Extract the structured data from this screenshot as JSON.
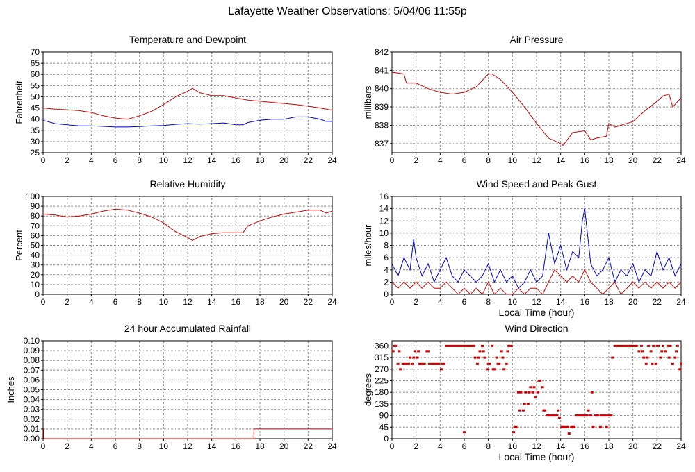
{
  "page": {
    "title": "Lafayette Weather Observations: 5/04/06 11:55p"
  },
  "colors": {
    "red": "#cc0000",
    "blue": "#0000cc",
    "grid": "#888888",
    "axis": "#000000"
  },
  "chart_data": [
    {
      "id": "temp",
      "type": "line",
      "title": "Temperature and Dewpoint",
      "xlabel": "",
      "ylabel": "Fahrenheit",
      "xlim": [
        0,
        24
      ],
      "ylim": [
        25,
        70
      ],
      "xticks": [
        0,
        2,
        4,
        6,
        8,
        10,
        12,
        14,
        16,
        18,
        20,
        22,
        24
      ],
      "yticks": [
        25,
        30,
        35,
        40,
        45,
        50,
        55,
        60,
        65,
        70
      ],
      "grid": true,
      "series": [
        {
          "color": "#cc0000",
          "x": [
            0,
            1,
            2,
            3,
            4,
            5,
            6,
            7,
            8,
            9,
            10,
            11,
            12,
            12.4,
            13,
            14,
            15,
            16,
            17,
            18,
            19,
            20,
            21,
            22,
            23,
            24
          ],
          "y": [
            45,
            44.5,
            44.2,
            43.8,
            43,
            41.5,
            40.5,
            40,
            41.5,
            43.5,
            46.5,
            50,
            52.5,
            53.8,
            51.8,
            50.5,
            50.5,
            49.5,
            48.5,
            48,
            47.5,
            47,
            46.5,
            45.8,
            45,
            44
          ]
        },
        {
          "color": "#0000cc",
          "x": [
            0,
            1,
            2,
            3,
            4,
            5,
            6,
            7,
            8,
            9,
            10,
            11,
            12,
            13,
            14,
            15,
            16,
            16.6,
            17,
            18,
            19,
            20,
            21,
            22,
            23,
            23.5,
            24
          ],
          "y": [
            39.5,
            38,
            37.5,
            37,
            37,
            36.8,
            36.5,
            36.5,
            36.7,
            37,
            37.2,
            37.7,
            38,
            37.8,
            38,
            38.3,
            37.5,
            37.5,
            38.5,
            39.5,
            40,
            40,
            41,
            41,
            40,
            39,
            39
          ]
        }
      ]
    },
    {
      "id": "pressure",
      "type": "line",
      "title": "Air Pressure",
      "xlabel": "",
      "ylabel": "millibars",
      "xlim": [
        0,
        24
      ],
      "ylim": [
        836.5,
        842
      ],
      "xticks": [
        0,
        2,
        4,
        6,
        8,
        10,
        12,
        14,
        16,
        18,
        20,
        22,
        24
      ],
      "yticks": [
        837,
        838,
        839,
        840,
        841,
        842
      ],
      "grid": true,
      "series": [
        {
          "color": "#cc0000",
          "x": [
            0,
            1,
            1.2,
            2,
            3,
            4,
            5,
            6,
            7,
            8,
            8.3,
            9,
            10,
            11,
            12,
            13,
            14,
            14.2,
            15,
            16,
            16.5,
            17,
            17.8,
            18,
            18.5,
            19,
            20,
            21,
            22,
            22.5,
            23,
            23.3,
            24
          ],
          "y": [
            840.9,
            840.8,
            840.3,
            840.3,
            840,
            839.8,
            839.7,
            839.8,
            840.1,
            840.8,
            840.8,
            840.5,
            839.8,
            839,
            838.1,
            837.3,
            837,
            836.9,
            837.6,
            837.7,
            837.2,
            837.3,
            837.4,
            838.1,
            837.9,
            838,
            838.2,
            838.8,
            839.3,
            839.6,
            839.7,
            839,
            839.5
          ]
        }
      ]
    },
    {
      "id": "humidity",
      "type": "line",
      "title": "Relative Humidity",
      "xlabel": "",
      "ylabel": "Percent",
      "xlim": [
        0,
        24
      ],
      "ylim": [
        0,
        100
      ],
      "xticks": [
        0,
        2,
        4,
        6,
        8,
        10,
        12,
        14,
        16,
        18,
        20,
        22,
        24
      ],
      "yticks": [
        0,
        10,
        20,
        30,
        40,
        50,
        60,
        70,
        80,
        90,
        100
      ],
      "grid": true,
      "series": [
        {
          "color": "#cc0000",
          "x": [
            0,
            1,
            2,
            3,
            4,
            5,
            6,
            7,
            8,
            9,
            10,
            11,
            12,
            12.4,
            13,
            14,
            15,
            16,
            16.6,
            17,
            18,
            19,
            20,
            21,
            22,
            23,
            23.5,
            24
          ],
          "y": [
            82,
            81,
            79,
            80,
            82,
            85,
            87,
            86,
            83,
            79,
            73,
            64,
            58,
            55,
            59,
            62,
            63,
            63,
            63,
            70,
            75,
            79,
            82,
            84,
            86,
            86,
            83,
            85
          ]
        }
      ]
    },
    {
      "id": "wind",
      "type": "line",
      "title": "Wind Speed and Peak Gust",
      "xlabel": "Local Time (hour)",
      "ylabel": "miles/hour",
      "xlim": [
        0,
        24
      ],
      "ylim": [
        0,
        16
      ],
      "xticks": [
        0,
        2,
        4,
        6,
        8,
        10,
        12,
        14,
        16,
        18,
        20,
        22,
        24
      ],
      "yticks": [
        0,
        2,
        4,
        6,
        8,
        10,
        12,
        14,
        16
      ],
      "grid": true,
      "series": [
        {
          "color": "#0000cc",
          "x": [
            0,
            0.5,
            1,
            1.5,
            1.8,
            2,
            2.5,
            3,
            3.5,
            4,
            4.5,
            5,
            5.5,
            6,
            6.5,
            7,
            7.5,
            8,
            8.5,
            9,
            9.5,
            10,
            10.5,
            11,
            11.5,
            12,
            12.5,
            13,
            13.5,
            14,
            14.5,
            15,
            15.5,
            15.8,
            16,
            16.5,
            17,
            17.5,
            18,
            18.5,
            19,
            19.5,
            20,
            20.5,
            21,
            21.5,
            22,
            22.5,
            23,
            23.5,
            24
          ],
          "y": [
            5,
            3,
            6,
            4,
            9,
            6,
            3,
            5,
            2,
            4,
            6,
            3,
            2,
            4,
            3,
            2,
            3,
            5,
            2,
            4,
            2,
            3,
            1,
            2,
            4,
            2,
            3,
            10,
            5,
            8,
            4,
            7,
            6,
            12,
            14,
            5,
            3,
            4,
            6,
            2,
            4,
            3,
            5,
            2,
            4,
            3,
            7,
            4,
            6,
            3,
            5
          ]
        },
        {
          "color": "#cc0000",
          "x": [
            0,
            0.5,
            1,
            1.5,
            2,
            2.5,
            3,
            3.5,
            4,
            4.5,
            5,
            5.5,
            6,
            6.5,
            7,
            7.5,
            8,
            8.5,
            9,
            9.5,
            10,
            10.5,
            11,
            11.5,
            12,
            12.5,
            13,
            13.5,
            14,
            14.5,
            15,
            15.5,
            16,
            16.5,
            17,
            17.5,
            18,
            18.5,
            19,
            19.5,
            20,
            20.5,
            21,
            21.5,
            22,
            22.5,
            23,
            23.5,
            24
          ],
          "y": [
            2,
            1,
            2,
            1,
            2,
            1,
            2,
            1,
            1,
            2,
            1,
            0,
            1,
            0,
            1,
            0,
            2,
            0,
            1,
            0,
            0,
            1,
            0,
            1,
            1,
            0,
            2,
            4,
            3,
            2,
            3,
            2,
            4,
            2,
            1,
            0,
            1,
            2,
            0,
            1,
            2,
            1,
            2,
            1,
            2,
            1,
            2,
            1,
            2
          ]
        }
      ]
    },
    {
      "id": "rain",
      "type": "line",
      "title": "24 hour Accumulated Rainfall",
      "xlabel": "",
      "ylabel": "Inches",
      "xlim": [
        0,
        24
      ],
      "ylim": [
        0,
        0.1
      ],
      "xticks": [
        0,
        2,
        4,
        6,
        8,
        10,
        12,
        14,
        16,
        18,
        20,
        22,
        24
      ],
      "yticks": [
        "0.00",
        "0.01",
        "0.02",
        "0.03",
        "0.04",
        "0.05",
        "0.06",
        "0.07",
        "0.08",
        "0.09",
        "0.10"
      ],
      "grid": true,
      "series": [
        {
          "color": "#cc0000",
          "x": [
            0,
            0.05,
            0.05,
            17.5,
            17.5,
            24
          ],
          "y": [
            0.01,
            0.01,
            0,
            0,
            0.01,
            0.01
          ]
        }
      ]
    },
    {
      "id": "winddir",
      "type": "scatter",
      "title": "Wind Direction",
      "xlabel": "Local Time (hour)",
      "ylabel": "degrees",
      "xlim": [
        0,
        24
      ],
      "ylim": [
        0,
        380
      ],
      "xticks": [
        0,
        2,
        4,
        6,
        8,
        10,
        12,
        14,
        16,
        18,
        20,
        22,
        24
      ],
      "yticks": [
        0,
        45,
        90,
        135,
        180,
        225,
        270,
        315,
        360
      ],
      "grid": true,
      "series": [
        {
          "color": "#cc0000",
          "x": [
            0.1,
            0.3,
            0.5,
            0.7,
            0.9,
            1.1,
            1.3,
            1.5,
            1.7,
            1.9,
            2.1,
            2.3,
            2.5,
            2.7,
            2.9,
            3.1,
            3.3,
            3.5,
            3.7,
            3.9,
            4.1,
            4.3,
            4.5,
            4.7,
            4.9,
            5.1,
            5.3,
            5.5,
            5.7,
            5.9,
            6.1,
            6.3,
            6.5,
            6.7,
            6.9,
            7.1,
            7.3,
            7.5,
            7.7,
            7.9,
            8.1,
            8.3,
            8.5,
            8.7,
            8.9,
            9.1,
            9.3,
            9.5,
            9.7,
            9.9,
            10.1,
            10.3,
            10.5,
            10.7,
            10.9,
            11.1,
            11.3,
            11.5,
            11.7,
            11.9,
            12.1,
            12.3,
            12.5,
            12.7,
            12.9,
            13.1,
            13.3,
            13.5,
            13.7,
            13.9,
            14.1,
            14.3,
            14.5,
            14.7,
            14.9,
            15.1,
            15.3,
            15.5,
            15.7,
            15.9,
            16.1,
            16.3,
            16.5,
            16.7,
            16.9,
            17.1,
            17.3,
            17.5,
            17.7,
            17.9,
            18.1,
            18.3,
            18.5,
            18.7,
            18.9,
            19.1,
            19.3,
            19.5,
            19.7,
            19.9,
            20.1,
            20.3,
            20.5,
            20.7,
            20.9,
            21.1,
            21.3,
            21.5,
            21.7,
            21.9,
            22.1,
            22.3,
            22.5,
            22.7,
            22.9,
            23.1,
            23.3,
            23.5,
            23.7,
            23.9,
            0.2,
            0.6,
            1.0,
            1.4,
            1.8,
            2.2,
            2.6,
            3.0,
            3.4,
            3.8,
            4.2,
            6.0,
            6.8,
            7.2,
            7.6,
            8.0,
            8.4,
            8.8,
            9.2,
            9.6,
            10.2,
            10.6,
            11.0,
            11.4,
            11.8,
            12.2,
            12.6,
            13.0,
            13.4,
            13.8,
            14.2,
            14.6,
            15.0,
            15.4,
            15.8,
            16.2,
            16.6,
            17.0,
            17.4,
            17.8,
            18.2,
            20.8,
            21.2,
            21.6,
            22.0,
            22.4,
            23.0,
            23.6,
            24.0
          ],
          "y": [
            340,
            360,
            290,
            270,
            290,
            290,
            290,
            315,
            290,
            340,
            315,
            290,
            290,
            290,
            340,
            290,
            290,
            290,
            290,
            290,
            270,
            290,
            360,
            360,
            360,
            360,
            360,
            360,
            360,
            360,
            360,
            360,
            360,
            360,
            315,
            290,
            340,
            360,
            315,
            270,
            290,
            360,
            270,
            315,
            290,
            340,
            270,
            290,
            360,
            360,
            25,
            45,
            180,
            180,
            110,
            180,
            135,
            200,
            180,
            160,
            180,
            225,
            200,
            110,
            90,
            90,
            90,
            90,
            90,
            80,
            45,
            45,
            45,
            20,
            45,
            45,
            90,
            90,
            90,
            90,
            90,
            110,
            90,
            45,
            90,
            90,
            45,
            90,
            90,
            90,
            90,
            315,
            360,
            360,
            360,
            360,
            360,
            360,
            360,
            360,
            360,
            360,
            340,
            360,
            315,
            290,
            360,
            340,
            360,
            290,
            360,
            315,
            360,
            340,
            360,
            360,
            290,
            315,
            360,
            270,
            360,
            340,
            290,
            290,
            315,
            340,
            290,
            340,
            290,
            290,
            290,
            25,
            360,
            315,
            340,
            290,
            270,
            290,
            315,
            340,
            45,
            110,
            135,
            180,
            200,
            225,
            110,
            90,
            90,
            110,
            45,
            45,
            45,
            90,
            90,
            90,
            180,
            90,
            90,
            45,
            90,
            340,
            315,
            290,
            360,
            340,
            315,
            340,
            290
          ]
        }
      ]
    }
  ]
}
